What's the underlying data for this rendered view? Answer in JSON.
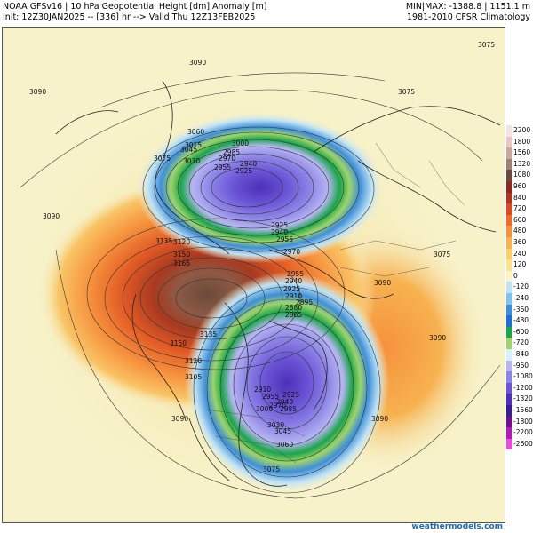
{
  "header": {
    "left_line1": "NOAA GFSv16 | 10 hPa Geopotential Height [dm] Anomaly [m]",
    "left_line2": "Init: 12Z30JAN2025 -- [336] hr --> Valid Thu 12Z13FEB2025",
    "right_line1": "MIN|MAX: -1388.8 | 1151.1 m",
    "right_line2": "1981-2010 CFSR Climatology"
  },
  "colorbar": {
    "levels": [
      {
        "label": "2200",
        "color": "#f6e3e6"
      },
      {
        "label": "1800",
        "color": "#e9c6bf"
      },
      {
        "label": "1560",
        "color": "#c7a89a"
      },
      {
        "label": "1320",
        "color": "#9f8070"
      },
      {
        "label": "1080",
        "color": "#6c4a3b"
      },
      {
        "label": "960",
        "color": "#8b2a1d"
      },
      {
        "label": "840",
        "color": "#b3361c"
      },
      {
        "label": "720",
        "color": "#d84c1f"
      },
      {
        "label": "600",
        "color": "#ee6b2a"
      },
      {
        "label": "480",
        "color": "#f6923d"
      },
      {
        "label": "360",
        "color": "#f8b24e"
      },
      {
        "label": "240",
        "color": "#fad067"
      },
      {
        "label": "120",
        "color": "#fbe48c"
      },
      {
        "label": "0",
        "color": "#fdf4c6"
      },
      {
        "label": "-120",
        "color": "#bfe3f5"
      },
      {
        "label": "-240",
        "color": "#7ec4ef"
      },
      {
        "label": "-360",
        "color": "#3f8fd8"
      },
      {
        "label": "-480",
        "color": "#1f6fcf"
      },
      {
        "label": "-600",
        "color": "#1aa54a"
      },
      {
        "label": "-720",
        "color": "#9ed46a"
      },
      {
        "label": "-840",
        "color": "#d8f0ff"
      },
      {
        "label": "-960",
        "color": "#b6b6f2"
      },
      {
        "label": "-1080",
        "color": "#8c83e6"
      },
      {
        "label": "-1200",
        "color": "#6a55d6"
      },
      {
        "label": "-1320",
        "color": "#4e2fb8"
      },
      {
        "label": "-1560",
        "color": "#381e8f"
      },
      {
        "label": "-1800",
        "color": "#6f118a"
      },
      {
        "label": "-2200",
        "color": "#b21ab8"
      },
      {
        "label": "-2600",
        "color": "#e84cd9"
      }
    ]
  },
  "anomaly_colors": {
    "background": "#f7f2c9",
    "warm_outer": "#f9dd82",
    "warm_mid": "#f6a64a",
    "warm_inner": "#e25a25",
    "warm_core": "#a83a20",
    "warm_peak": "#6b4a3a",
    "cold_outer": "#bfe3f5",
    "cold_mid": "#4a9de0",
    "cold_ring": "#1aa54a",
    "cold_inner": "#8c83e6",
    "cold_core": "#4e2fb8"
  },
  "contour_labels": [
    "3090",
    "3075",
    "3075",
    "3090",
    "3060",
    "3045",
    "3015",
    "3000",
    "2985",
    "2970",
    "2955",
    "2940",
    "2925",
    "3075",
    "3030",
    "2925",
    "2940",
    "2955",
    "2970",
    "3135",
    "3120",
    "3150",
    "3165",
    "3090",
    "3090",
    "2955",
    "2940",
    "2925",
    "2910",
    "2895",
    "2880",
    "2865",
    "3150",
    "3135",
    "3120",
    "3105",
    "2910",
    "2925",
    "2940",
    "2955",
    "2970",
    "2985",
    "3000",
    "3030",
    "3045",
    "3060",
    "3090",
    "3075",
    "3075",
    "3090",
    "3090"
  ],
  "footer": {
    "brand": "weathermodels.com"
  }
}
